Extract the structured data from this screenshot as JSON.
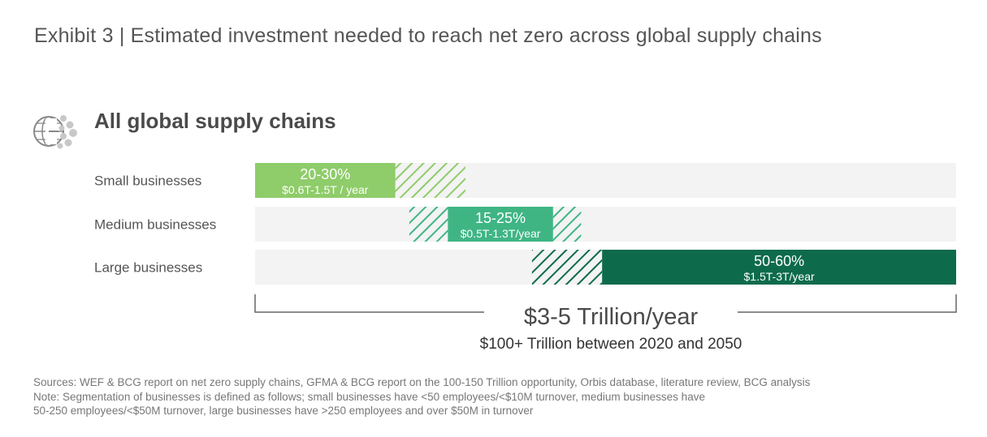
{
  "exhibit_title": "Exhibit 3 | Estimated investment needed to reach net zero across global supply chains",
  "section": {
    "title": "All global supply chains",
    "icon": "globe-network-icon"
  },
  "colors": {
    "small": "#8fcc6a",
    "medium": "#3fb584",
    "large": "#0d6b4b",
    "track": "#f3f3f3"
  },
  "chart_data": {
    "type": "bar",
    "orientation": "horizontal",
    "scale_note": "share of total investment (%), shaded solid = range, hatched = uncertainty",
    "categories": [
      "Small businesses",
      "Medium businesses",
      "Large businesses"
    ],
    "rows": [
      {
        "label": "Small businesses",
        "percent_label": "20-30%",
        "range_label": "$0.6T-1.5T / year",
        "solid": [
          0,
          20
        ],
        "hatched": [
          [
            20,
            30
          ]
        ],
        "color_key": "small"
      },
      {
        "label": "Medium businesses",
        "percent_label": "15-25%",
        "range_label": "$0.5T-1.3T/year",
        "solid": [
          27.5,
          42.5
        ],
        "hatched": [
          [
            22,
            27.5
          ],
          [
            42.5,
            46.5
          ]
        ],
        "color_key": "medium"
      },
      {
        "label": "Large businesses",
        "percent_label": "50-60%",
        "range_label": "$1.5T-3T/year",
        "solid": [
          49.5,
          100
        ],
        "hatched": [
          [
            39.5,
            49.5
          ]
        ],
        "color_key": "large"
      }
    ],
    "xlim": [
      0,
      100
    ],
    "total": {
      "headline": "$3-5 Trillion/year",
      "subline": "$100+ Trillion between 2020 and 2050"
    }
  },
  "footnotes": {
    "sources": "Sources: WEF & BCG report on net zero supply chains, GFMA & BCG report on the 100-150 Trillion opportunity, Orbis database, literature review, BCG analysis",
    "note_line1": "Note: Segmentation of businesses is defined as follows; small businesses have <50 employees/<$10M turnover, medium businesses have",
    "note_line2": "50-250 employees/<$50M turnover, large businesses have >250 employees and over $50M in turnover"
  }
}
